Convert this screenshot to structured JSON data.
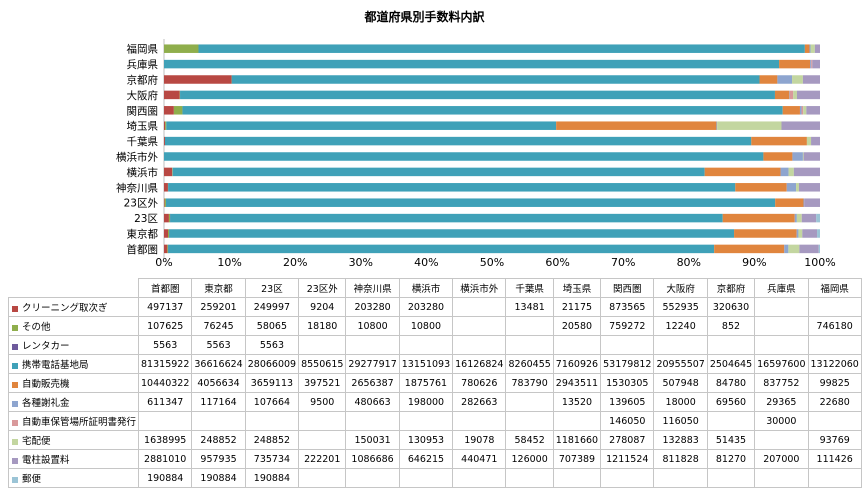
{
  "colors": [
    "#b84843",
    "#8fae4c",
    "#6e5a9c",
    "#3fa1b8",
    "#e0853e",
    "#8ea5cf",
    "#d9999b",
    "#c3d6a0",
    "#a699c0",
    "#9bc4d6"
  ],
  "chart_data": {
    "type": "bar",
    "orientation": "horizontal",
    "stacked": "percent",
    "title": "都道府県別手数料内訳",
    "xlim": [
      0,
      100
    ],
    "xticks": [
      "0%",
      "10%",
      "20%",
      "30%",
      "40%",
      "50%",
      "60%",
      "70%",
      "80%",
      "90%",
      "100%"
    ],
    "categories": [
      "首都圏",
      "東京都",
      "23区",
      "23区外",
      "神奈川県",
      "横浜市",
      "横浜市外",
      "千葉県",
      "埼玉県",
      "関西圏",
      "大阪府",
      "京都府",
      "兵庫県",
      "福岡県"
    ],
    "series": [
      {
        "name": "クリーニング取次ぎ",
        "values": [
          497137,
          259201,
          249997,
          9204,
          203280,
          203280,
          null,
          13481,
          21175,
          873565,
          552935,
          320630,
          null,
          null
        ]
      },
      {
        "name": "その他",
        "values": [
          107625,
          76245,
          58065,
          18180,
          10800,
          10800,
          null,
          null,
          20580,
          759272,
          12240,
          852,
          null,
          746180
        ]
      },
      {
        "name": "レンタカー",
        "values": [
          5563,
          5563,
          5563,
          null,
          null,
          null,
          null,
          null,
          null,
          null,
          null,
          null,
          null,
          null
        ]
      },
      {
        "name": "携帯電話基地局",
        "values": [
          81315922,
          36616624,
          28066009,
          8550615,
          29277917,
          13151093,
          16126824,
          8260455,
          7160926,
          53179812,
          20955507,
          2504645,
          16597600,
          13122060
        ]
      },
      {
        "name": "自動販売機",
        "values": [
          10440322,
          4056634,
          3659113,
          397521,
          2656387,
          1875761,
          780626,
          783790,
          2943511,
          1530305,
          507948,
          84780,
          837752,
          99825
        ]
      },
      {
        "name": "各種謝礼金",
        "values": [
          611347,
          117164,
          107664,
          9500,
          480663,
          198000,
          282663,
          null,
          13520,
          139605,
          18000,
          69560,
          29365,
          22680
        ]
      },
      {
        "name": "自動車保管場所証明書発行",
        "values": [
          null,
          null,
          null,
          null,
          null,
          null,
          null,
          null,
          null,
          146050,
          116050,
          null,
          30000,
          null
        ]
      },
      {
        "name": "宅配便",
        "values": [
          1638995,
          248852,
          248852,
          null,
          150031,
          130953,
          19078,
          58452,
          1181660,
          278087,
          132883,
          51435,
          null,
          93769
        ]
      },
      {
        "name": "電柱設置料",
        "values": [
          2881010,
          957935,
          735734,
          222201,
          1086686,
          646215,
          440471,
          126000,
          707389,
          1211524,
          811828,
          81270,
          207000,
          111426
        ]
      },
      {
        "name": "郵便",
        "values": [
          190884,
          190884,
          190884,
          null,
          null,
          null,
          null,
          null,
          null,
          null,
          null,
          null,
          null,
          null
        ]
      }
    ]
  }
}
